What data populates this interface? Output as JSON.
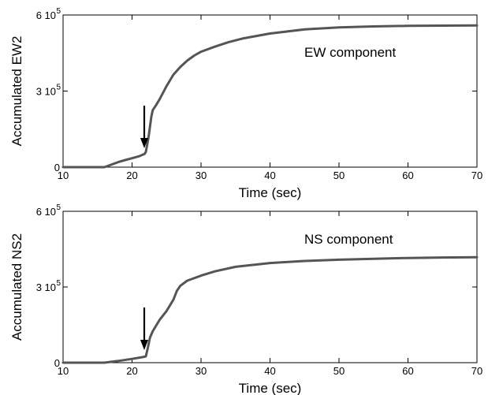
{
  "chart_data": [
    {
      "type": "line",
      "title": "",
      "xlabel": "Time (sec)",
      "ylabel": "Accumulated EW2",
      "xlim": [
        10,
        70
      ],
      "ylim": [
        0,
        600000
      ],
      "x_ticks": [
        "10",
        "20",
        "30",
        "40",
        "50",
        "60",
        "70"
      ],
      "y_ticks": [
        {
          "value": 0,
          "base": "0",
          "exp": ""
        },
        {
          "value": 300000,
          "base": "3 10",
          "exp": "5"
        },
        {
          "value": 600000,
          "base": "6 10",
          "exp": "5"
        }
      ],
      "annotation": "EW component",
      "arrow_x": 22,
      "line_color": "#555555",
      "series": [
        {
          "x": [
            10,
            16,
            16.5,
            18,
            19,
            20,
            21,
            21.8,
            22,
            22.4,
            22.8,
            23,
            23.5,
            24,
            25,
            26,
            27,
            28,
            29,
            30,
            32,
            34,
            36,
            40,
            45,
            50,
            55,
            60,
            65,
            70
          ],
          "values": [
            0,
            0,
            5000,
            20000,
            28000,
            35000,
            43000,
            52000,
            60000,
            120000,
            200000,
            225000,
            245000,
            268000,
            320000,
            365000,
            395000,
            420000,
            440000,
            455000,
            475000,
            493000,
            507000,
            527000,
            543000,
            551000,
            555000,
            557000,
            558000,
            559000
          ]
        }
      ]
    },
    {
      "type": "line",
      "title": "",
      "xlabel": "Time (sec)",
      "ylabel": "Accumulated NS2",
      "xlim": [
        10,
        70
      ],
      "ylim": [
        0,
        600000
      ],
      "x_ticks": [
        "10",
        "20",
        "30",
        "40",
        "50",
        "60",
        "70"
      ],
      "y_ticks": [
        {
          "value": 0,
          "base": "0",
          "exp": ""
        },
        {
          "value": 300000,
          "base": "3 10",
          "exp": "5"
        },
        {
          "value": 600000,
          "base": "6 10",
          "exp": "5"
        }
      ],
      "annotation": "NS component",
      "arrow_x": 22,
      "line_color": "#555555",
      "series": [
        {
          "x": [
            10,
            16,
            18,
            20,
            21.5,
            22,
            22.3,
            22.6,
            23,
            24,
            25,
            26,
            26.5,
            27,
            28,
            30,
            32,
            35,
            40,
            45,
            50,
            55,
            60,
            65,
            70
          ],
          "values": [
            0,
            0,
            7000,
            15000,
            22000,
            25000,
            60000,
            100000,
            125000,
            170000,
            205000,
            250000,
            285000,
            305000,
            325000,
            345000,
            362000,
            380000,
            395000,
            403000,
            408000,
            412000,
            415000,
            417000,
            418000
          ]
        }
      ]
    }
  ]
}
